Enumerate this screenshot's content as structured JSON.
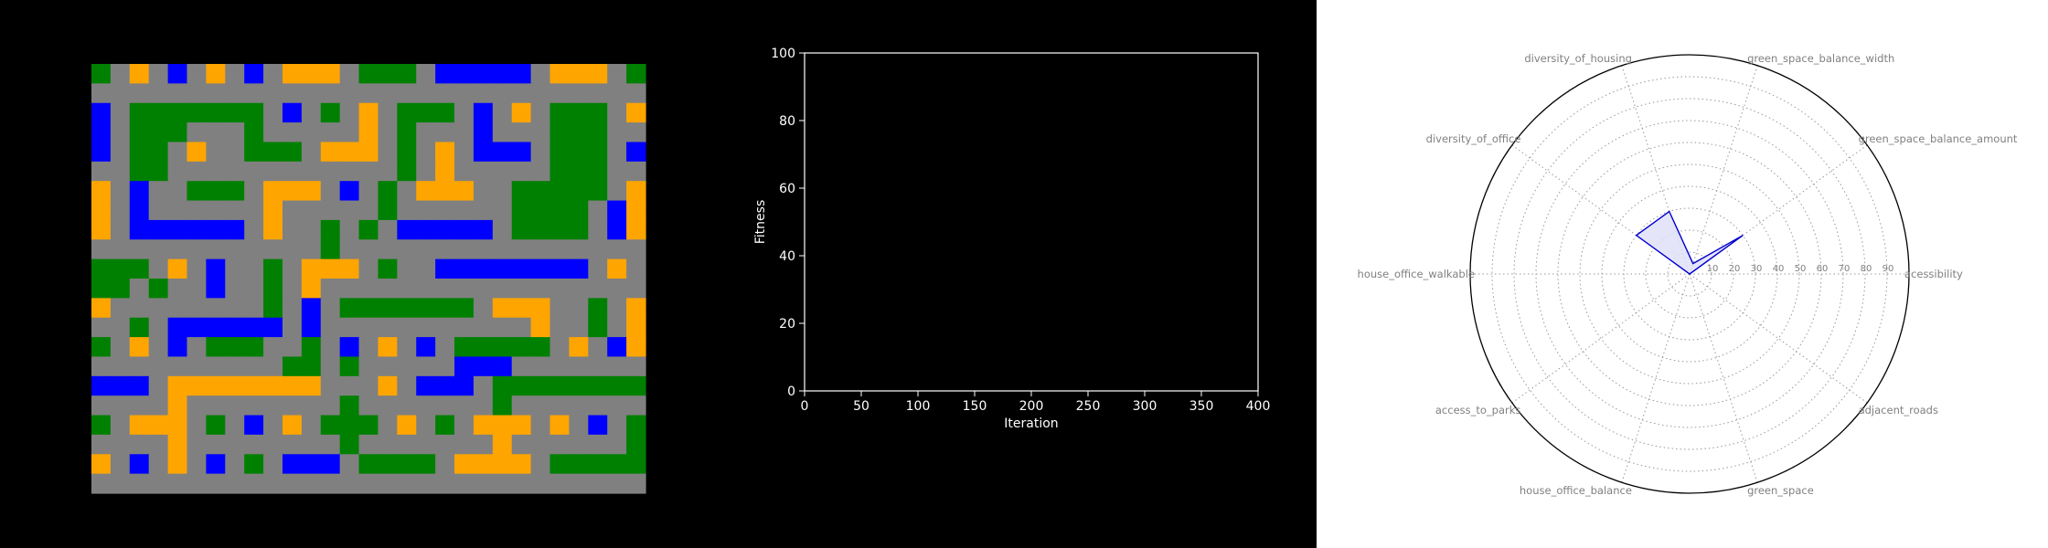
{
  "chart_data": [
    {
      "type": "heatmap",
      "rows": 22,
      "cols": 29,
      "palette": {
        "G": "#808080",
        "B": "#0000ff",
        "O": "#ffa500",
        "N": "#008000"
      },
      "cells": [
        "NGOGBGOGBGOOOGNNNGBBBBBGOOOGN",
        "GGGGGGGGGGGGGGGGGGGGGGGGGGGGG",
        "BGNNNNNNNGBGNGOGNNNGBGOGNNNGO",
        "BGNNNGGGNGGGGGOGNGGGBGGGNNNGG",
        "BGNNGOGGNNNGOOOGNGOGBBBGNNNGB",
        "GGNNGGGGGGGGGGGGNGOGGGGGNNNGG",
        "OGBGGNNNGOOOGBGNGOOOGGNNNNNGO",
        "OGBGGGGGGOGGGGGNGGGGGGNNNNGBO",
        "OGBBBBBBGOGGNGNGBBBBBGNNNNGBO",
        "GGGGGGGGGGGGNGGGGGGGGGGGGGGGG",
        "NNNGOGBGGNGOOOGNGGBBBBBBBBGOG",
        "NNGNGGBGGNGOGGGGGGGGGGGGGGGGG",
        "OGGGGGGGGNGBGNNNNNNNGOOOGGNGO",
        "GGNGBBBBBBGBGGGGGGGGGGGOGGNGO",
        "NGOGBGNNNGGNGBGOGBGNNNNNGOGBO",
        "GGGGGGGGGGNNGNGGGGGBBBGGGGGGG",
        "BBBGOOOOOOOOGGGOGBBBGNNNNNNNN",
        "GGGGOGGGGGGGGNGGGGGGGNGGGGGGG",
        "NGOOOGNGBGOGNNNGOGNGOOOGOGBGN",
        "GGGGOGGGGGGGGNGGGGGGGOGGGGGGN",
        "OGBGOGBGNGBBBGNNNNGOOOOGNNNNN",
        "GGGGGGGGGGGGGGGGGGGGGGGGGGGGG"
      ]
    },
    {
      "type": "line",
      "series": [],
      "xlabel": "Iteration",
      "ylabel": "Fitness",
      "xlim": [
        0,
        400
      ],
      "ylim": [
        0,
        100
      ],
      "xticks": [
        0,
        50,
        100,
        150,
        200,
        250,
        300,
        350,
        400
      ],
      "yticks": [
        0,
        20,
        40,
        60,
        80,
        100
      ]
    },
    {
      "type": "radar",
      "axes": [
        "acessibility",
        "green_space_balance_amount",
        "green_space_balance_width",
        "diversity_of_housing",
        "diversity_of_office",
        "house_office_walkable",
        "access_to_parks",
        "house_office_balance",
        "green_space",
        "adjacent_roads"
      ],
      "rticks": [
        10,
        20,
        30,
        40,
        50,
        60,
        70,
        80,
        90
      ],
      "rmax": 100,
      "series": [
        {
          "values": [
            0,
            30,
            5,
            30,
            30,
            0,
            0,
            0,
            0,
            0
          ],
          "color": "#0000cd",
          "fill": "#e0e0f8"
        }
      ]
    }
  ]
}
